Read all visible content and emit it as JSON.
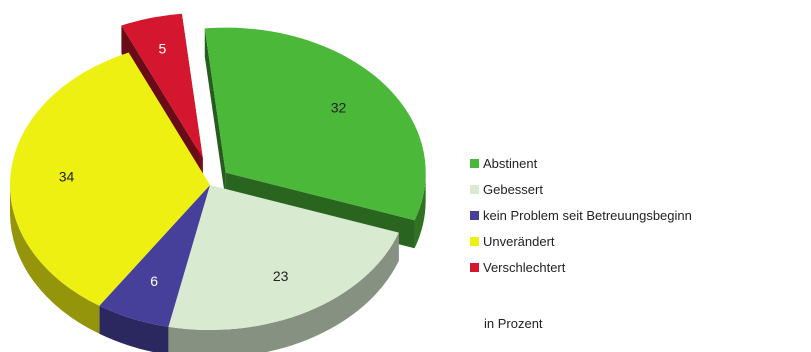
{
  "chart_data": {
    "type": "pie",
    "slices": [
      {
        "label": "Abstinent",
        "value": 32,
        "color": "#4cb83a"
      },
      {
        "label": "Gebessert",
        "value": 23,
        "color": "#d8ead0"
      },
      {
        "label": "kein Problem seit Betreuungsbeginn",
        "value": 6,
        "color": "#46409a"
      },
      {
        "label": "Unverändert",
        "value": 34,
        "color": "#eef011"
      },
      {
        "label": "Verschlechtert",
        "value": 5,
        "color": "#d4172f"
      }
    ],
    "exploded_slices": [
      "Abstinent",
      "Verschlechtert"
    ],
    "style": "3d",
    "note": "in Prozent"
  }
}
